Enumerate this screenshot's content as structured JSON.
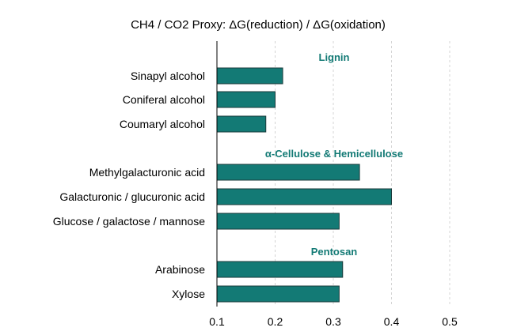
{
  "chart_data": {
    "type": "bar",
    "orientation": "horizontal",
    "title": "CH4 / CO2 Proxy: ΔG(reduction) / ΔG(oxidation)",
    "xlabel": "",
    "ylabel": "",
    "xlim": [
      0.1,
      0.5
    ],
    "xticks": [
      "0.1",
      "0.2",
      "0.3",
      "0.4",
      "0.5"
    ],
    "grid": "vertical dashed",
    "bar_color": "#137a75",
    "group_label_color": "#137a75",
    "groups": [
      {
        "label": "Lignin",
        "categories": [
          "Sinapyl alcohol",
          "Coniferal alcohol",
          "Coumaryl alcohol"
        ],
        "values": [
          0.213,
          0.2,
          0.184
        ]
      },
      {
        "label": "α-Cellulose & Hemicellulose",
        "categories": [
          "Methylgalacturonic acid",
          "Galacturonic / glucuronic acid",
          "Glucose / galactose / mannose"
        ],
        "values": [
          0.345,
          0.4,
          0.31
        ]
      },
      {
        "label": "Pentosan",
        "categories": [
          "Arabinose",
          "Xylose"
        ],
        "values": [
          0.316,
          0.31
        ]
      }
    ]
  }
}
